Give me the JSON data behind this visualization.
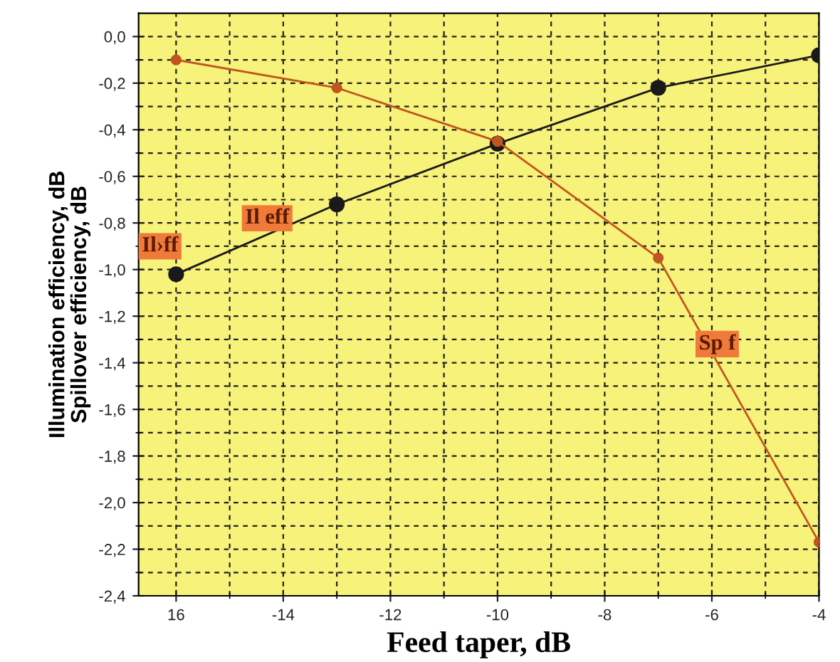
{
  "chart_data": {
    "type": "line",
    "x": [
      -16,
      -13,
      -10,
      -7,
      -4
    ],
    "series": [
      {
        "color": "#1a1a1a",
        "values": [
          -1.02,
          -0.72,
          -0.46,
          -0.22,
          -0.08
        ]
      },
      {
        "color": "#c0561e",
        "values": [
          -0.1,
          -0.22,
          -0.45,
          -0.95,
          -2.17
        ]
      }
    ],
    "xlabel": "Feed taper, dB",
    "ylabel": "Illumination efficiency, dB\nSpillover efficiency, dB",
    "xlim": [
      -16.7,
      -4
    ],
    "ylim": [
      -2.4,
      0.1
    ],
    "xticks": [
      {
        "value": -16,
        "label": "16"
      },
      -14,
      -12,
      -10,
      -8,
      -6,
      -4
    ],
    "yticks": [
      {
        "value": 0,
        "label": "0,0"
      },
      {
        "value": -0.2,
        "label": "-0,2"
      },
      {
        "value": -0.4,
        "label": "-0,4"
      },
      {
        "value": -0.6,
        "label": "-0,6"
      },
      {
        "value": -0.8,
        "label": "-0,8"
      },
      {
        "value": -1.0,
        "label": "-1,0"
      },
      {
        "value": -1.2,
        "label": "-1,2"
      },
      {
        "value": -1.4,
        "label": "-1,4"
      },
      {
        "value": -1.6,
        "label": "-1,6"
      },
      {
        "value": -1.8,
        "label": "-1,8"
      },
      {
        "value": -2.0,
        "label": "-2,0"
      },
      {
        "value": -2.2,
        "label": "-2,2"
      },
      {
        "value": -2.4,
        "label": "-2,4"
      }
    ],
    "grid": true,
    "marker": "circle",
    "line_style": "solid",
    "annotations": [
      {
        "text": "Il eff",
        "x": -14.3,
        "y": -0.78
      },
      {
        "text": "Il›ff",
        "x": -16.3,
        "y": -0.9
      },
      {
        "text": "Sp f",
        "x": -5.9,
        "y": -1.32
      }
    ]
  }
}
